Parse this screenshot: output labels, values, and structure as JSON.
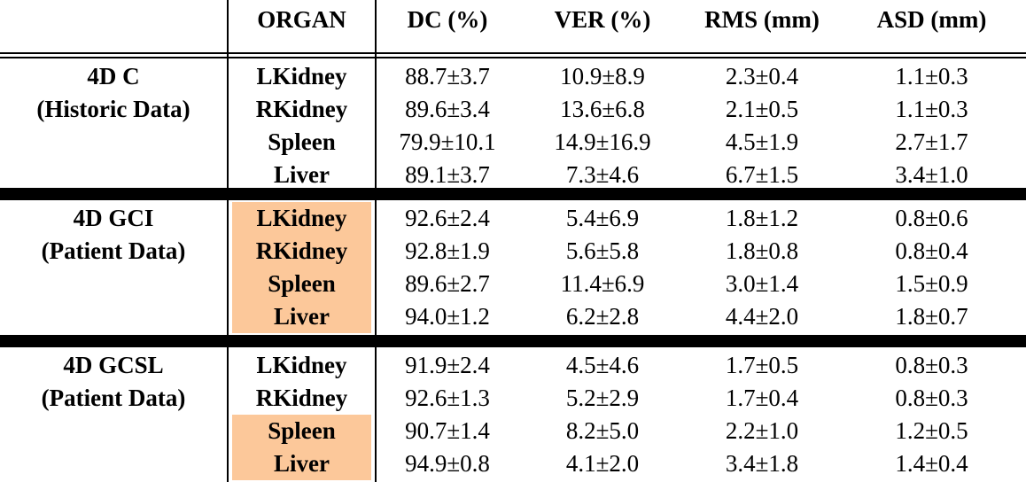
{
  "header": {
    "group": "",
    "organ": "ORGAN",
    "dc": "DC (%)",
    "ver": "VER (%)",
    "rms": "RMS (mm)",
    "asd": "ASD (mm)"
  },
  "sections": [
    {
      "title_line1": "4D C",
      "title_line2": "(Historic Data)",
      "rows": [
        {
          "organ": "LKidney",
          "dc": "88.7±3.7",
          "ver": "10.9±8.9",
          "rms": "2.3±0.4",
          "asd": "1.1±0.3",
          "highlight": false
        },
        {
          "organ": "RKidney",
          "dc": "89.6±3.4",
          "ver": "13.6±6.8",
          "rms": "2.1±0.5",
          "asd": "1.1±0.3",
          "highlight": false
        },
        {
          "organ": "Spleen",
          "dc": "79.9±10.1",
          "ver": "14.9±16.9",
          "rms": "4.5±1.9",
          "asd": "2.7±1.7",
          "highlight": false
        },
        {
          "organ": "Liver",
          "dc": "89.1±3.7",
          "ver": "7.3±4.6",
          "rms": "6.7±1.5",
          "asd": "3.4±1.0",
          "highlight": false
        }
      ]
    },
    {
      "title_line1": "4D GCI",
      "title_line2": "(Patient Data)",
      "rows": [
        {
          "organ": "LKidney",
          "dc": "92.6±2.4",
          "ver": "5.4±6.9",
          "rms": "1.8±1.2",
          "asd": "0.8±0.6",
          "highlight": true
        },
        {
          "organ": "RKidney",
          "dc": "92.8±1.9",
          "ver": "5.6±5.8",
          "rms": "1.8±0.8",
          "asd": "0.8±0.4",
          "highlight": true
        },
        {
          "organ": "Spleen",
          "dc": "89.6±2.7",
          "ver": "11.4±6.9",
          "rms": "3.0±1.4",
          "asd": "1.5±0.9",
          "highlight": true
        },
        {
          "organ": "Liver",
          "dc": "94.0±1.2",
          "ver": "6.2±2.8",
          "rms": "4.4±2.0",
          "asd": "1.8±0.7",
          "highlight": true
        }
      ]
    },
    {
      "title_line1": "4D GCSL",
      "title_line2": "(Patient Data)",
      "rows": [
        {
          "organ": "LKidney",
          "dc": "91.9±2.4",
          "ver": "4.5±4.6",
          "rms": "1.7±0.5",
          "asd": "0.8±0.3",
          "highlight": false
        },
        {
          "organ": "RKidney",
          "dc": "92.6±1.3",
          "ver": "5.2±2.9",
          "rms": "1.7±0.4",
          "asd": "0.8±0.3",
          "highlight": false
        },
        {
          "organ": "Spleen",
          "dc": "90.7±1.4",
          "ver": "8.2±5.0",
          "rms": "2.2±1.0",
          "asd": "1.2±0.5",
          "highlight": true
        },
        {
          "organ": "Liver",
          "dc": "94.9±0.8",
          "ver": "4.1±2.0",
          "rms": "3.4±1.8",
          "asd": "1.4±0.4",
          "highlight": true
        }
      ]
    }
  ],
  "colors": {
    "highlight": "#fcc89a",
    "rule": "#000000"
  }
}
